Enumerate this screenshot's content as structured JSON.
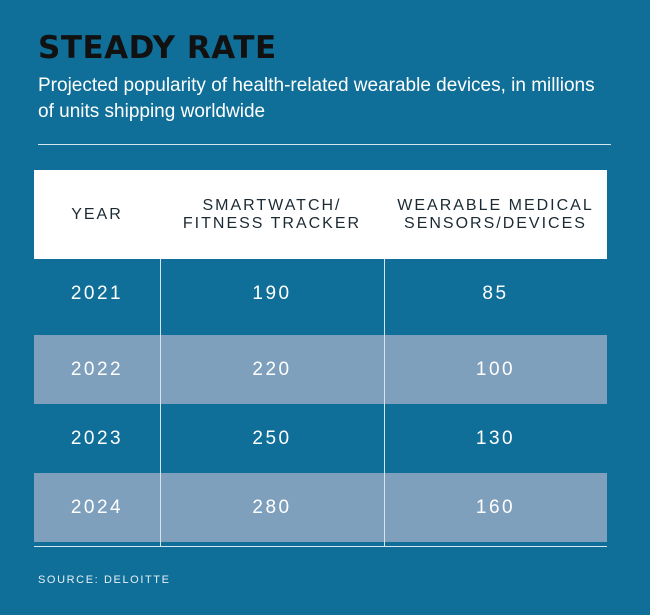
{
  "header": {
    "title": "STEADY RATE",
    "subtitle": "Projected popularity of health-related wearable devices, in millions of units shipping worldwide"
  },
  "colors": {
    "background": "#0f6f99",
    "header_row": "#ffffff",
    "shaded_row": "#7fa0bd",
    "title_text": "#111111"
  },
  "chart_data": {
    "type": "table",
    "columns": [
      "YEAR",
      "SMARTWATCH/\nFITNESS TRACKER",
      "WEARABLE MEDICAL\nSENSORS/DEVICES"
    ],
    "rows": [
      [
        "2021",
        "190",
        "85"
      ],
      [
        "2022",
        "220",
        "100"
      ],
      [
        "2023",
        "250",
        "130"
      ],
      [
        "2024",
        "280",
        "160"
      ]
    ]
  },
  "footer": {
    "source": "SOURCE: DELOITTE"
  }
}
